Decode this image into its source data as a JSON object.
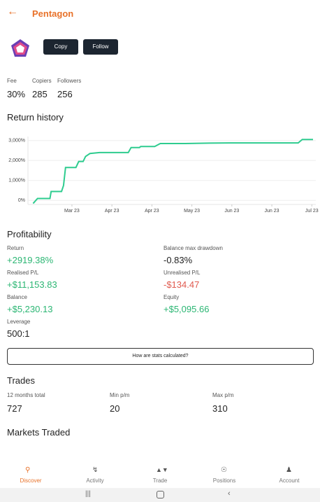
{
  "header": {
    "title": "Pentagon"
  },
  "actions": {
    "copy": "Copy",
    "follow": "Follow"
  },
  "stats": [
    {
      "label": "Fee",
      "value": "30%"
    },
    {
      "label": "Copiers",
      "value": "285"
    },
    {
      "label": "Followers",
      "value": "256"
    }
  ],
  "chart_data": {
    "type": "line",
    "title": "Return history",
    "x": [
      0.03,
      0.14,
      0.45,
      0.48,
      0.74,
      0.79,
      0.84,
      1.1,
      1.17,
      1.28,
      1.34,
      1.45,
      1.69,
      2.41,
      2.48,
      2.69,
      2.72,
      3.07,
      3.21,
      3.84,
      4.45,
      4.97,
      6.66,
      6.76,
      7.03
    ],
    "series": [
      {
        "name": "Return",
        "color": "#2ecc8f",
        "values": [
          -150,
          100,
          100,
          450,
          450,
          750,
          1650,
          1650,
          1950,
          1950,
          2200,
          2350,
          2400,
          2400,
          2650,
          2650,
          2700,
          2700,
          2850,
          2850,
          2870,
          2880,
          2880,
          3050,
          3050
        ]
      }
    ],
    "xlim": [
      -0.1,
      7.1
    ],
    "xticks": [
      {
        "value": 1,
        "label": "Mar 23"
      },
      {
        "value": 2,
        "label": "Apr 23"
      },
      {
        "value": 3,
        "label": "Apr 23"
      },
      {
        "value": 4,
        "label": "May 23"
      },
      {
        "value": 5,
        "label": "Jun 23"
      },
      {
        "value": 6,
        "label": "Jun 23"
      },
      {
        "value": 7,
        "label": "Jul 23"
      }
    ],
    "ylim": [
      -200,
      3200
    ],
    "yticks": [
      {
        "value": 0,
        "label": "0%"
      },
      {
        "value": 1000,
        "label": "1,000%"
      },
      {
        "value": 2000,
        "label": "2,000%"
      },
      {
        "value": 3000,
        "label": "3,000%"
      }
    ],
    "grid": true
  },
  "profitability": {
    "title": "Profitability",
    "items": [
      {
        "label": "Return",
        "value": "+2919.38%"
      },
      {
        "label": "Balance max drawdown",
        "value": "-0.83%"
      },
      {
        "label": "Realised P/L",
        "value": "+$11,153.83"
      },
      {
        "label": "Unrealised P/L",
        "value": "-$134.47"
      },
      {
        "label": "Balance",
        "value": "+$5,230.13"
      },
      {
        "label": "Equity",
        "value": "+$5,095.66"
      },
      {
        "label": "Leverage",
        "value": "500:1"
      }
    ]
  },
  "stats_button": "How are stats calculated?",
  "trades": {
    "title": "Trades",
    "items": [
      {
        "label": "12 months total",
        "value": "727"
      },
      {
        "label": "Min p/m",
        "value": "20"
      },
      {
        "label": "Max p/m",
        "value": "310"
      }
    ]
  },
  "markets": {
    "title": "Markets Traded"
  },
  "nav": [
    "Discover",
    "Activity",
    "Trade",
    "Positions",
    "Account"
  ]
}
